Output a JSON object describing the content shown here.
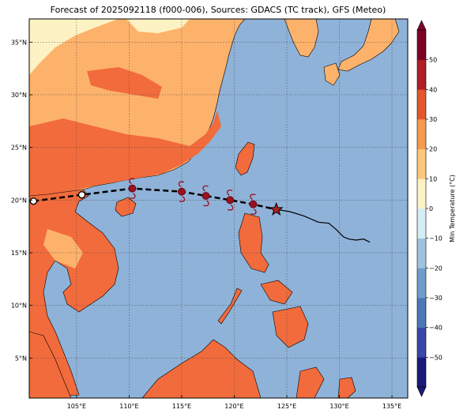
{
  "title": "Forecast of 2025092118 (f000-006), Sources: GDACS (TC track), GFS (Meteo)",
  "map": {
    "lon_range": [
      100.5,
      136.5
    ],
    "lat_range": [
      1.2,
      37.2
    ],
    "lon_ticks": [
      "105°E",
      "110°E",
      "115°E",
      "120°E",
      "125°E",
      "130°E",
      "135°E"
    ],
    "lon_values": [
      105,
      110,
      115,
      120,
      125,
      130,
      135
    ],
    "lat_ticks": [
      "5°N",
      "10°N",
      "15°N",
      "20°N",
      "25°N",
      "30°N",
      "35°N"
    ],
    "lat_values": [
      5,
      10,
      15,
      20,
      25,
      30,
      35
    ],
    "ocean_color": "#8fb2d8"
  },
  "track": {
    "forecast_points": [
      {
        "lon": 100.9,
        "lat": 19.9,
        "type": "remnant"
      },
      {
        "lon": 105.5,
        "lat": 20.5,
        "type": "remnant"
      },
      {
        "lon": 110.3,
        "lat": 21.1,
        "type": "typhoon"
      },
      {
        "lon": 115.0,
        "lat": 20.8,
        "type": "typhoon"
      },
      {
        "lon": 117.3,
        "lat": 20.4,
        "type": "typhoon"
      },
      {
        "lon": 119.6,
        "lat": 20.0,
        "type": "typhoon"
      },
      {
        "lon": 121.8,
        "lat": 19.6,
        "type": "typhoon"
      }
    ],
    "current_position": {
      "lon": 124.0,
      "lat": 19.1
    },
    "past_track": [
      [
        124.0,
        19.1
      ],
      [
        125.3,
        18.9
      ],
      [
        126.6,
        18.5
      ],
      [
        128.0,
        17.9
      ],
      [
        129.0,
        17.8
      ],
      [
        129.7,
        17.2
      ],
      [
        130.4,
        16.5
      ],
      [
        130.9,
        16.3
      ],
      [
        131.6,
        16.2
      ],
      [
        132.3,
        16.3
      ],
      [
        132.9,
        16.0
      ]
    ]
  },
  "colorbar": {
    "label": "Min Temperature (°C)",
    "tick_labels": [
      "50",
      "40",
      "30",
      "20",
      "10",
      "0",
      "−10",
      "−20",
      "−30",
      "−40",
      "−50"
    ],
    "colors": [
      "#1a1a7a",
      "#3a46a8",
      "#4a78b8",
      "#6f9dcb",
      "#9ec3e0",
      "#d6ecf5",
      "#fdf2c4",
      "#fdc77a",
      "#f79a4e",
      "#e4572e",
      "#b11e24",
      "#800026"
    ]
  }
}
